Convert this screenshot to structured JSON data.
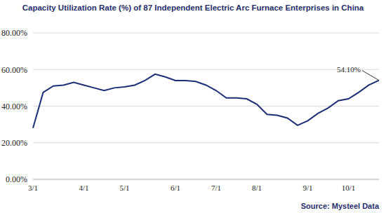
{
  "chart_data": {
    "type": "line",
    "title": "Capacity Utilization Rate (%) of 87 Independent Electric Arc Furnace Enterprises in China",
    "source": "Source: Mysteel Data",
    "annotation": "54.10%",
    "categories": [
      "3/1",
      null,
      null,
      null,
      null,
      "4/1",
      null,
      null,
      null,
      "5/1",
      null,
      null,
      null,
      null,
      "6/1",
      null,
      null,
      null,
      "7/1",
      null,
      null,
      null,
      "8/1",
      null,
      null,
      null,
      null,
      "9/1",
      null,
      null,
      null,
      "10/1",
      null,
      null,
      null
    ],
    "values": [
      28,
      47.5,
      51,
      51.5,
      53,
      51.5,
      50,
      48.5,
      50,
      50.5,
      51.5,
      54,
      57.5,
      56,
      54,
      54,
      53.5,
      51.5,
      48.5,
      44.5,
      44.5,
      44,
      41,
      35.5,
      35,
      33.5,
      29.5,
      32,
      36,
      39,
      43,
      44,
      47.5,
      51.5,
      54.1
    ],
    "color": "#1a2e78",
    "ylim": [
      0,
      80
    ],
    "yticks": [
      {
        "value": 0,
        "label": "0.00%"
      },
      {
        "value": 20,
        "label": "20.00%"
      },
      {
        "value": 40,
        "label": "40.00%"
      },
      {
        "value": 60,
        "label": "60.00%"
      },
      {
        "value": 80,
        "label": "80.00%"
      }
    ],
    "grid": true
  }
}
